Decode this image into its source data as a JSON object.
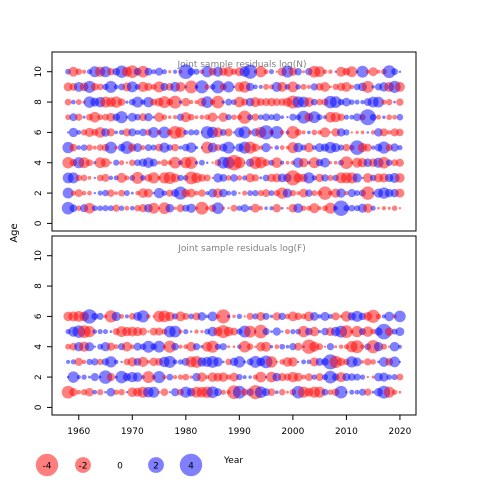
{
  "chart_data": {
    "type": "scatter",
    "subtype": "bubble",
    "colors": {
      "positive": "#0000ff",
      "negative": "#ff0000"
    },
    "bubble_alpha": 0.5,
    "ylabel": "Age",
    "xlabel": "Year",
    "xlim": [
      1955,
      2023
    ],
    "xticks": [
      1960,
      1970,
      1980,
      1990,
      2000,
      2010,
      2020
    ],
    "years_range": [
      1958,
      2020
    ],
    "legend": {
      "values": [
        -4,
        -2,
        0,
        2,
        4
      ],
      "labels": [
        "-4",
        "-2",
        "0",
        "2",
        "4"
      ],
      "title": "Year",
      "placement": "bottom"
    },
    "panels": [
      {
        "title": "Joint sample residuals log(N)",
        "ylim": [
          -0.5,
          11.3
        ],
        "yticks": [
          0,
          2,
          4,
          6,
          8,
          10
        ],
        "ages": [
          1,
          2,
          3,
          4,
          5,
          6,
          7,
          8,
          9,
          10
        ]
      },
      {
        "title": "Joint sample residuals log(F)",
        "ylim": [
          -0.5,
          11.3
        ],
        "yticks": [
          0,
          2,
          4,
          6,
          8,
          10
        ],
        "ages": [
          1,
          2,
          3,
          4,
          5,
          6
        ]
      }
    ]
  }
}
